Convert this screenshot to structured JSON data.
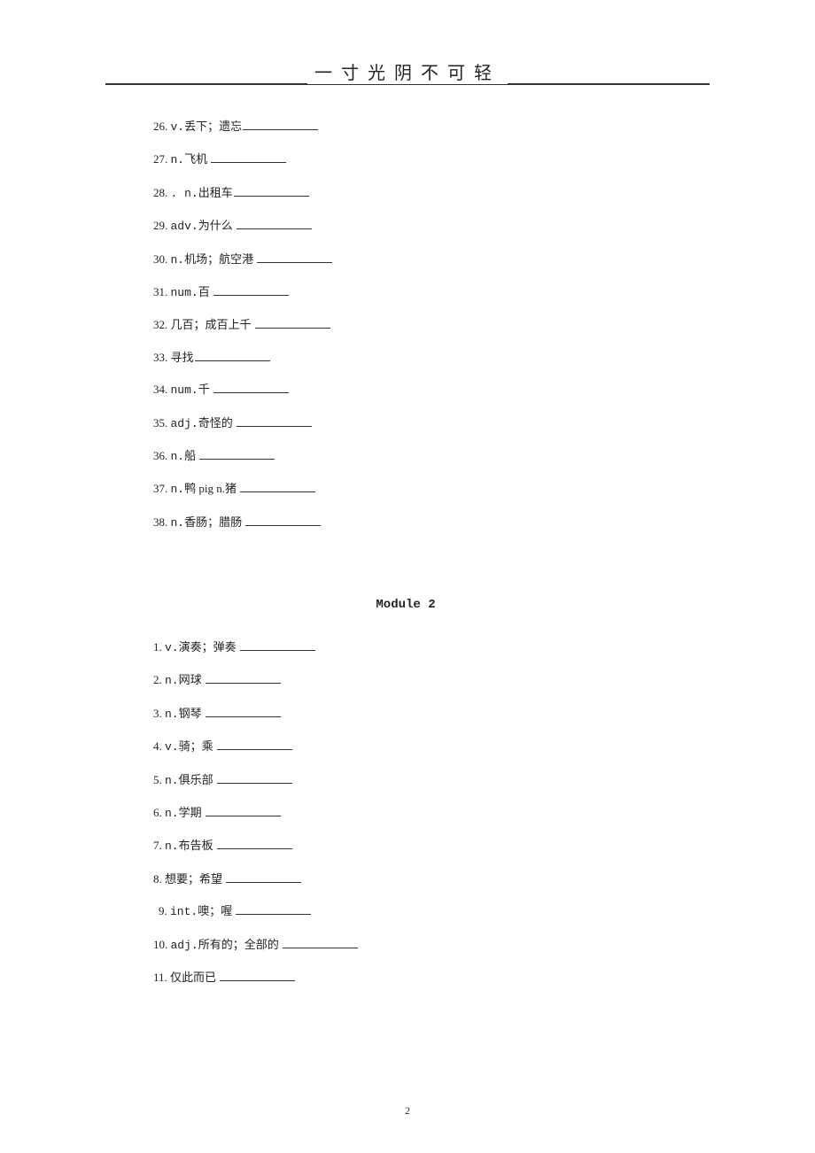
{
  "header": {
    "title": "一寸光阴不可轻"
  },
  "section1": {
    "items": [
      {
        "num": "26.",
        "pos": "v.",
        "def": "丢下；遗忘"
      },
      {
        "num": "27.",
        "pos": "n.",
        "def": "飞机 "
      },
      {
        "num": "28.",
        "pos": ". n.",
        "def": "出租车"
      },
      {
        "num": "29.",
        "pos": "adv.",
        "def": "为什么 "
      },
      {
        "num": "30.",
        "pos": "n.",
        "def": "机场；航空港 "
      },
      {
        "num": "31.",
        "pos": "num.",
        "def": "百 "
      },
      {
        "num": "32.",
        "pos": "",
        "def": "几百；成百上千 "
      },
      {
        "num": "33.",
        "pos": "",
        "def": "寻找"
      },
      {
        "num": "34.",
        "pos": "num.",
        "def": "千 "
      },
      {
        "num": "35.",
        "pos": "adj.",
        "def": "奇怪的 "
      },
      {
        "num": "36.",
        "pos": "n.",
        "def": "船 "
      },
      {
        "num": "37.",
        "pos": "n.",
        "def": "鸭 pig n.猪 "
      },
      {
        "num": "38.",
        "pos": "n.",
        "def": "香肠；腊肠 "
      }
    ]
  },
  "moduleTitle": "Module 2",
  "section2": {
    "items": [
      {
        "num": "1.",
        "pos": "v.",
        "def": "演奏；弹奏 "
      },
      {
        "num": "2.",
        "pos": "n.",
        "def": "网球 "
      },
      {
        "num": "3.",
        "pos": "n.",
        "def": "钢琴 "
      },
      {
        "num": "4.",
        "pos": "v.",
        "def": "骑；乘 "
      },
      {
        "num": "5.",
        "pos": "n.",
        "def": "俱乐部 "
      },
      {
        "num": "6.",
        "pos": "n.",
        "def": "学期 "
      },
      {
        "num": "7.",
        "pos": "n.",
        "def": "布告板 "
      },
      {
        "num": "8.",
        "pos": "",
        "def": "想要；希望 "
      },
      {
        "num": "9.",
        "pos": "int.",
        "def": "噢；喔 ",
        "indent": true
      },
      {
        "num": "10.",
        "pos": "adj.",
        "def": "所有的；全部的 "
      },
      {
        "num": "11.",
        "pos": "",
        "def": "仅此而已 "
      }
    ]
  },
  "pageNumber": "2"
}
